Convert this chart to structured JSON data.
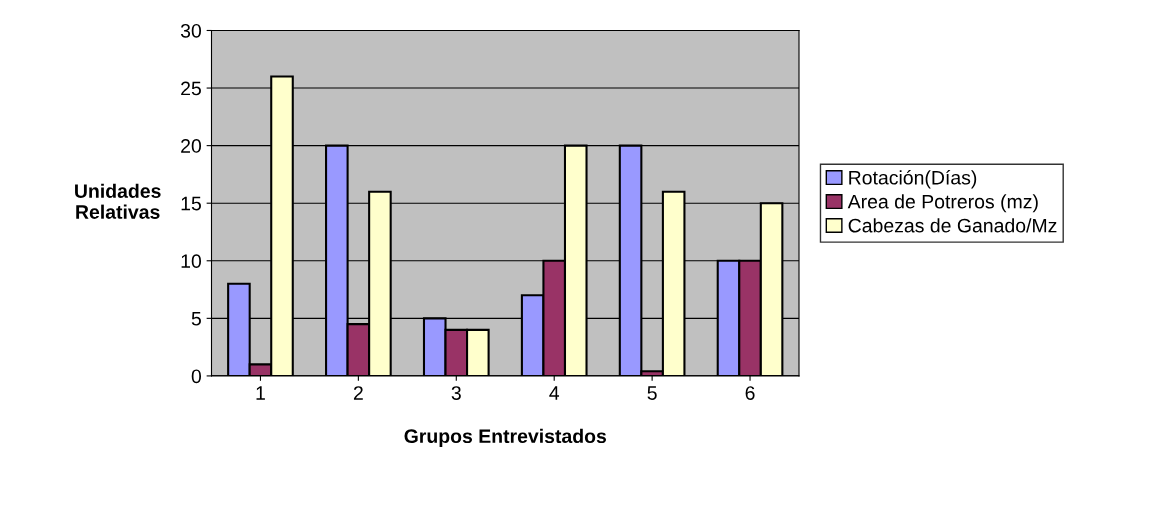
{
  "chart_data": {
    "type": "bar",
    "xlabel": "Grupos Entrevistados",
    "ylabel": "Unidades\nRelativas",
    "categories": [
      "1",
      "2",
      "3",
      "4",
      "5",
      "6"
    ],
    "series": [
      {
        "name": "Rotación(Días)",
        "color": "#9999ff",
        "values": [
          8,
          20,
          5,
          7,
          20,
          10
        ]
      },
      {
        "name": "Area de Potreros (mz)",
        "color": "#993366",
        "values": [
          1,
          4.5,
          4,
          10,
          0.4,
          10
        ]
      },
      {
        "name": "Cabezas de Ganado/Mz",
        "color": "#ffffcc",
        "values": [
          26,
          16,
          4,
          20,
          16,
          15
        ]
      }
    ],
    "ylim": [
      0,
      30
    ],
    "yticks": [
      0,
      5,
      10,
      15,
      20,
      25,
      30
    ],
    "grid": "y",
    "legend": "right"
  }
}
